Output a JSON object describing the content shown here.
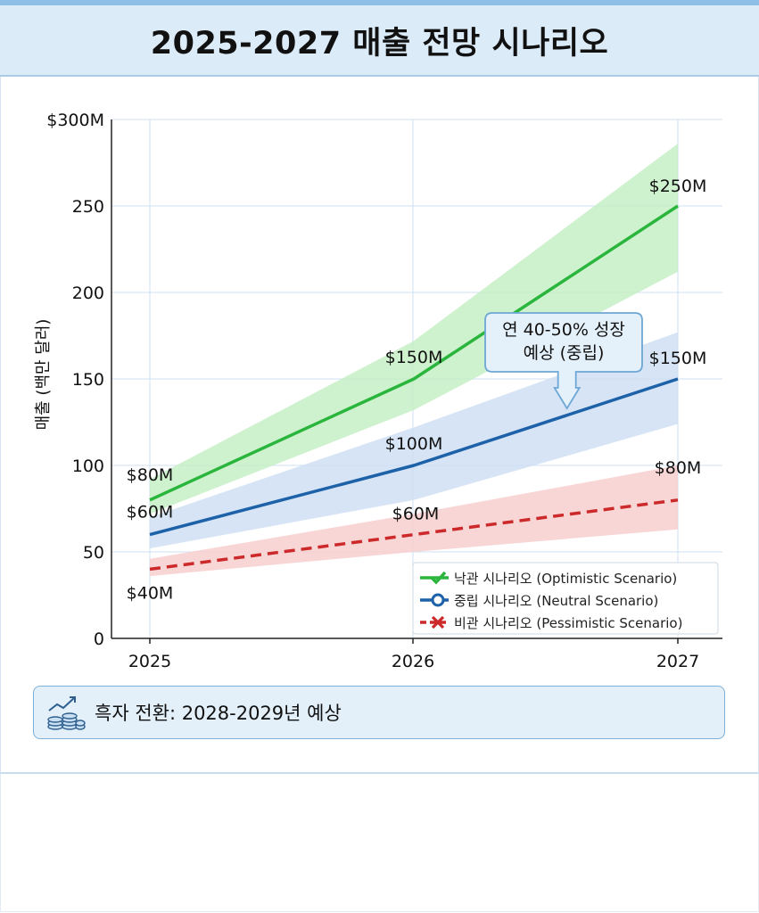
{
  "title": "2025-2027 매출 전망 시나리오",
  "chart_data": {
    "type": "line",
    "x": [
      2025,
      2026,
      2027
    ],
    "xlabels": [
      "2025",
      "2026",
      "2027"
    ],
    "ylabel": "매출 (백만 달러)",
    "ylim": [
      0,
      300
    ],
    "yticks": [
      0,
      50,
      100,
      150,
      200,
      250,
      300
    ],
    "ytick_labels": [
      "0",
      "50",
      "100",
      "150",
      "200",
      "250",
      "$300M"
    ],
    "grid": true,
    "legend_position": "bottom-right",
    "series": [
      {
        "name": "낙관 시나리오 (Optimistic Scenario)",
        "values": [
          80,
          150,
          250
        ],
        "band_low": [
          72,
          132,
          212
        ],
        "band_high": [
          92,
          172,
          286
        ],
        "labels": [
          "$80M",
          "$150M",
          "$250M"
        ],
        "color": "#2ab53c",
        "band_color": "#c6eec6",
        "style": "solid",
        "marker": "check"
      },
      {
        "name": "중립 시나리오 (Neutral Scenario)",
        "values": [
          60,
          100,
          150
        ],
        "band_low": [
          52,
          80,
          124
        ],
        "band_high": [
          70,
          122,
          177
        ],
        "labels": [
          "$60M",
          "$100M",
          "$150M"
        ],
        "color": "#1d62a9",
        "band_color": "#cfdff3",
        "style": "solid",
        "marker": "circle"
      },
      {
        "name": "비관 시나리오 (Pessimistic Scenario)",
        "values": [
          40,
          60,
          80
        ],
        "band_low": [
          36,
          50,
          63
        ],
        "band_high": [
          46,
          72,
          100
        ],
        "labels": [
          "$40M",
          "$60M",
          "$80M"
        ],
        "color": "#cc2a2a",
        "band_color": "#f8cfcf",
        "style": "dashed",
        "marker": "x"
      }
    ],
    "annotation": {
      "lines": [
        "연 40-50% 성장",
        "예상 (중립)"
      ],
      "target_x": 2026.58,
      "target_y": 133
    }
  },
  "note": {
    "icon": "coins-growth-icon",
    "text": "흑자 전환: 2028-2029년 예상"
  }
}
